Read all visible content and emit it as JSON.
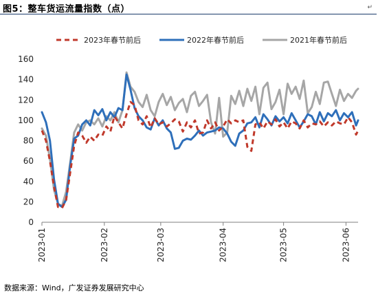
{
  "header": {
    "title": "图5：整车货运流量指数（点）",
    "corner_mark": "↵"
  },
  "footer": {
    "source": "数据来源：Wind，广发证券发展研究中心"
  },
  "colors": {
    "s2023": "#c0392b",
    "s2022": "#2e6fba",
    "s2021": "#a6a6a6",
    "axis": "#7f7f7f"
  },
  "chart_data": {
    "type": "line",
    "title": "",
    "xlabel": "",
    "ylabel": "",
    "ylim": [
      0,
      160
    ],
    "yticks": [
      0,
      20,
      40,
      60,
      80,
      100,
      120,
      140,
      160
    ],
    "x_range_days": [
      0,
      157
    ],
    "xticks": [
      {
        "label": "2023-01",
        "day": 0
      },
      {
        "label": "2023-02",
        "day": 31
      },
      {
        "label": "2023-03",
        "day": 59
      },
      {
        "label": "2023-04",
        "day": 90
      },
      {
        "label": "2023-05",
        "day": 120
      },
      {
        "label": "2023-06",
        "day": 151
      }
    ],
    "legend_position": "top",
    "grid": false,
    "series": [
      {
        "name": "2023年春节前后",
        "style": "dashed",
        "x": [
          0,
          2,
          4,
          6,
          8,
          10,
          12,
          14,
          16,
          18,
          20,
          22,
          24,
          26,
          28,
          30,
          32,
          34,
          36,
          38,
          40,
          42,
          44,
          46,
          48,
          50,
          52,
          54,
          56,
          58,
          60,
          62,
          64,
          66,
          68,
          70,
          72,
          74,
          76,
          78,
          80,
          82,
          84,
          86,
          88,
          90,
          92,
          94,
          96,
          98,
          100,
          102,
          104,
          106,
          108,
          110,
          112,
          114,
          116,
          118,
          120,
          122,
          124,
          126,
          128,
          130,
          132,
          134,
          136,
          138,
          140,
          142,
          144,
          146,
          148,
          150,
          152,
          154,
          156,
          157
        ],
        "values": [
          90,
          80,
          60,
          35,
          15,
          14,
          22,
          48,
          75,
          88,
          85,
          78,
          84,
          80,
          86,
          85,
          94,
          89,
          104,
          98,
          92,
          106,
          118,
          115,
          100,
          96,
          104,
          93,
          102,
          96,
          98,
          94,
          97,
          101,
          99,
          89,
          98,
          93,
          100,
          87,
          88,
          100,
          92,
          98,
          90,
          94,
          101,
          97,
          100,
          98,
          100,
          74,
          70,
          96,
          98,
          92,
          99,
          96,
          101,
          94,
          98,
          92,
          99,
          97,
          92,
          100,
          93,
          97,
          96,
          99,
          94,
          98,
          95,
          99,
          97,
          96,
          103,
          98,
          86,
          90
        ]
      },
      {
        "name": "2022年春节前后",
        "style": "solid",
        "x": [
          0,
          2,
          4,
          6,
          8,
          10,
          12,
          14,
          16,
          18,
          20,
          22,
          24,
          26,
          28,
          30,
          32,
          34,
          36,
          38,
          40,
          42,
          44,
          46,
          48,
          50,
          52,
          54,
          56,
          58,
          60,
          62,
          64,
          66,
          68,
          70,
          72,
          74,
          76,
          78,
          80,
          82,
          84,
          86,
          88,
          90,
          92,
          94,
          96,
          98,
          100,
          102,
          104,
          106,
          108,
          110,
          112,
          114,
          116,
          118,
          120,
          122,
          124,
          126,
          128,
          130,
          132,
          134,
          136,
          138,
          140,
          142,
          144,
          146,
          148,
          150,
          152,
          154,
          156,
          157
        ],
        "values": [
          108,
          98,
          80,
          42,
          18,
          15,
          22,
          55,
          82,
          85,
          96,
          100,
          95,
          110,
          105,
          111,
          100,
          108,
          103,
          112,
          110,
          145,
          130,
          112,
          104,
          100,
          93,
          91,
          102,
          95,
          100,
          92,
          88,
          72,
          73,
          80,
          82,
          81,
          85,
          90,
          85,
          88,
          89,
          90,
          93,
          92,
          87,
          79,
          75,
          87,
          90,
          97,
          98,
          103,
          93,
          106,
          101,
          95,
          104,
          99,
          103,
          97,
          107,
          100,
          93,
          99,
          106,
          104,
          96,
          108,
          99,
          107,
          104,
          110,
          100,
          107,
          103,
          108,
          95,
          100
        ]
      },
      {
        "name": "2021年春节前后",
        "style": "solid",
        "x": [
          0,
          2,
          4,
          6,
          8,
          10,
          12,
          14,
          16,
          18,
          20,
          22,
          24,
          26,
          28,
          30,
          32,
          34,
          36,
          38,
          40,
          42,
          44,
          46,
          48,
          50,
          52,
          54,
          56,
          58,
          60,
          62,
          64,
          66,
          68,
          70,
          72,
          74,
          76,
          78,
          80,
          82,
          84,
          86,
          88,
          90,
          92,
          94,
          96,
          98,
          100,
          102,
          104,
          106,
          108,
          110,
          112,
          114,
          116,
          118,
          120,
          122,
          124,
          126,
          128,
          130,
          132,
          134,
          136,
          138,
          140,
          142,
          144,
          146,
          148,
          150,
          152,
          154,
          156,
          157
        ],
        "values": [
          92,
          85,
          62,
          32,
          18,
          16,
          30,
          58,
          88,
          96,
          90,
          98,
          100,
          96,
          102,
          94,
          104,
          100,
          108,
          98,
          110,
          147,
          133,
          128,
          118,
          113,
          125,
          110,
          104,
          118,
          126,
          115,
          123,
          110,
          117,
          121,
          108,
          124,
          128,
          114,
          119,
          125,
          98,
          87,
          122,
          84,
          88,
          124,
          116,
          129,
          114,
          131,
          119,
          133,
          106,
          132,
          137,
          111,
          118,
          130,
          106,
          136,
          126,
          133,
          121,
          139,
          107,
          113,
          128,
          116,
          137,
          138,
          126,
          114,
          130,
          119,
          126,
          122,
          129,
          131
        ]
      }
    ]
  }
}
